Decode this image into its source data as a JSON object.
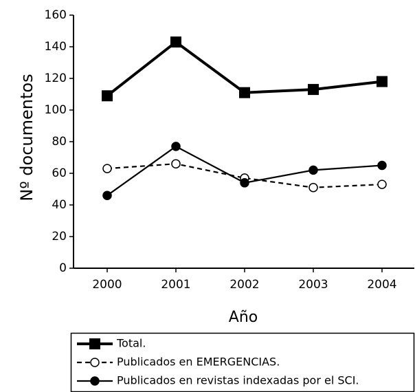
{
  "chart_data": {
    "type": "line",
    "x_label": "Año",
    "y_label": "Nº documentos",
    "categories": [
      "2000",
      "2001",
      "2002",
      "2003",
      "2004"
    ],
    "series": [
      {
        "name": "Total.",
        "color": "#000000",
        "marker": "square",
        "dashed": false,
        "values": [
          109,
          143,
          111,
          113,
          118
        ]
      },
      {
        "name": "Publicados en EMERGENCIAS.",
        "color": "#000000",
        "marker": "circle-open",
        "dashed": true,
        "values": [
          63,
          66,
          57,
          51,
          53
        ]
      },
      {
        "name": "Publicados en revistas indexadas por el SCI.",
        "color": "#000000",
        "marker": "circle",
        "dashed": false,
        "values": [
          46,
          77,
          54,
          62,
          65
        ]
      }
    ],
    "ylim": [
      0,
      160
    ],
    "yticks": [
      0,
      20,
      40,
      60,
      80,
      100,
      120,
      140,
      160
    ],
    "grid": false
  }
}
